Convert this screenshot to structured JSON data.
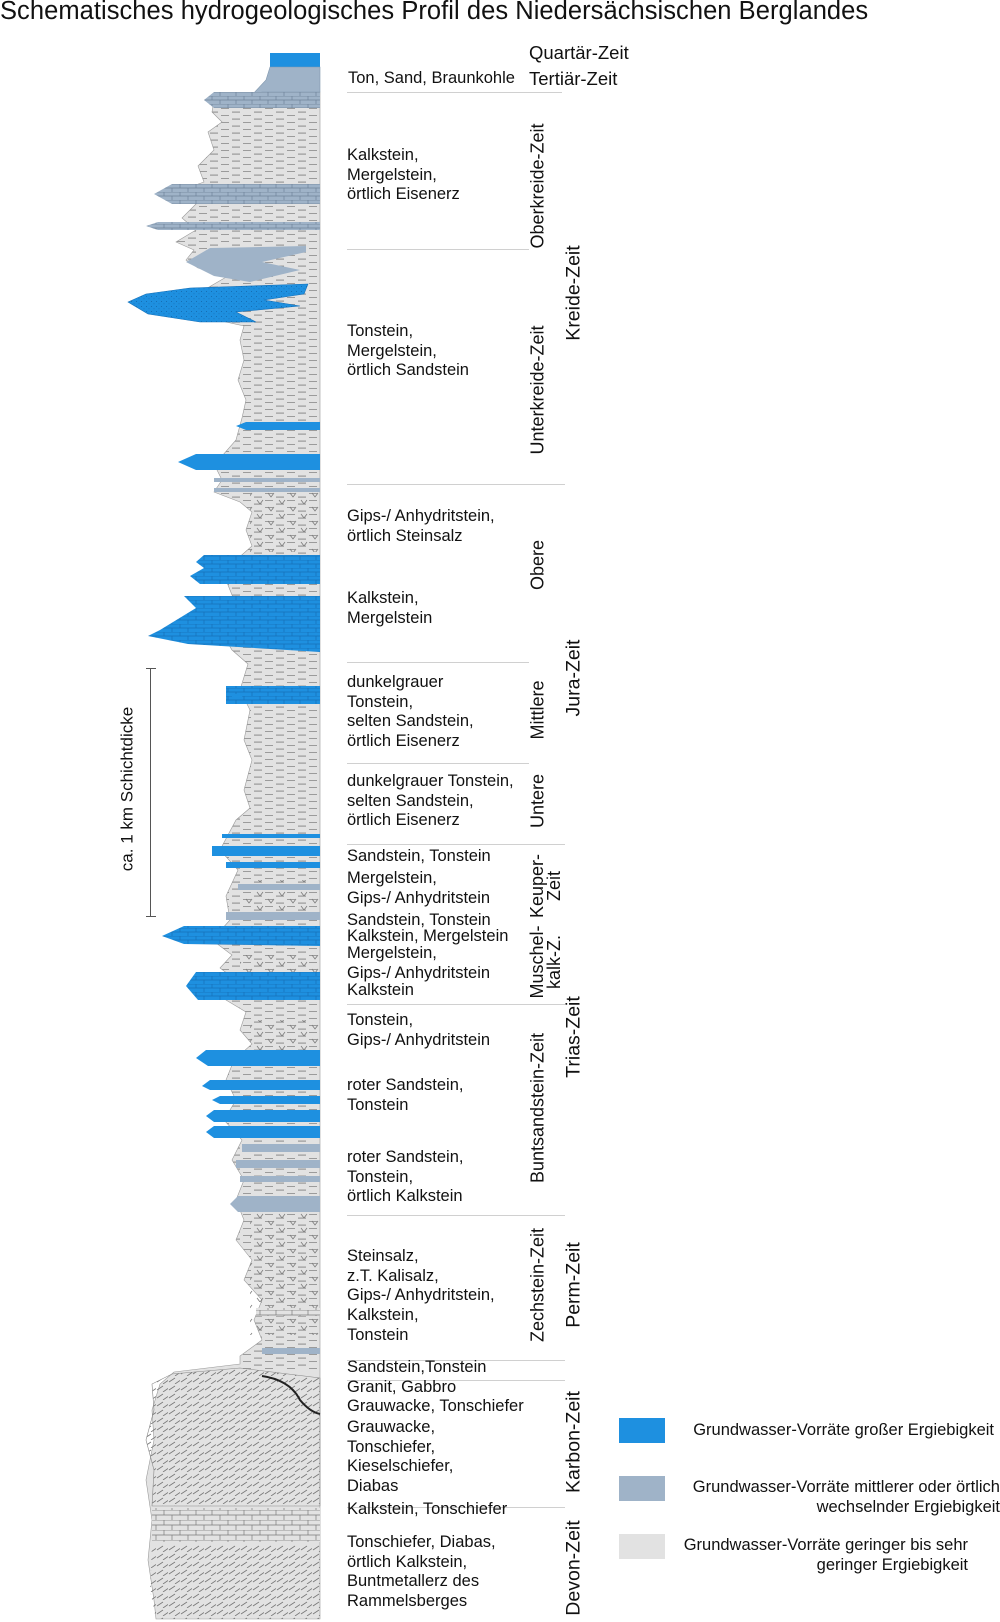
{
  "title": "Schematisches hydrogeologisches Profil des Niedersächsischen Berglandes",
  "colors": {
    "high": "#1e90e0",
    "medium": "#9fb3c8",
    "low": "#e2e2e2"
  },
  "scale_label": "ca. 1 km Schichtdicke",
  "eras": {
    "quartaer": "Quartär-Zeit",
    "tertiaer": "Tertiär-Zeit"
  },
  "periods": {
    "kreide": "Kreide-Zeit",
    "jura": "Jura-Zeit",
    "trias": "Trias-Zeit",
    "perm": "Perm-Zeit",
    "karbon": "Karbon-Zeit",
    "devon": "Devon-Zeit"
  },
  "subperiods": {
    "oberkreide": "Oberkreide-Zeit",
    "unterkreide": "Unterkreide-Zeit",
    "obere": "Obere",
    "mittlere": "Mittlere",
    "untere": "Untere",
    "keuper": "Keuper-\nZeit",
    "muschelkalk": "Muschel-\nkalk-Z.",
    "buntsandstein": "Buntsandstein-Zeit",
    "zechstein": "Zechstein-Zeit"
  },
  "lithology": [
    "Ton, Sand, Braunkohle",
    "Kalkstein,\nMergelstein,\nörtlich Eisenerz",
    "Tonstein,\nMergelstein,\nörtlich Sandstein",
    "Gips-/ Anhydritstein,\nörtlich Steinsalz",
    "Kalkstein,\nMergelstein",
    "dunkelgrauer\nTonstein,\nselten Sandstein,\nörtlich Eisenerz",
    "dunkelgrauer Tonstein,\nselten Sandstein,\nörtlich Eisenerz",
    "Sandstein, Tonstein",
    "Mergelstein,\nGips-/ Anhydritstein",
    "Sandstein, Tonstein",
    "Kalkstein, Mergelstein",
    "Mergelstein,\nGips-/ Anhydritstein",
    "Kalkstein",
    "Tonstein,\nGips-/ Anhydritstein",
    "roter Sandstein,\nTonstein",
    "roter Sandstein,\nTonstein,\nörtlich Kalkstein",
    "Steinsalz,\nz.T. Kalisalz,\nGips-/ Anhydritstein,\nKalkstein,\nTonstein",
    "Sandstein,Tonstein",
    "Granit, Gabbro",
    "Grauwacke, Tonschiefer",
    "Grauwacke,\nTonschiefer,\nKieselschiefer,\nDiabas",
    "Kalkstein, Tonschiefer",
    "Tonschiefer, Diabas,\nörtlich Kalkstein,\nBuntmetallerz des\nRammelsberges"
  ],
  "legend": [
    {
      "label": "Grundwasser-Vorräte großer Ergiebigkeit",
      "color": "#1e90e0"
    },
    {
      "label": "Grundwasser-Vorräte mittlerer oder örtlich\nwechselnder Ergiebigkeit",
      "color": "#9fb3c8"
    },
    {
      "label": "Grundwasser-Vorräte geringer bis sehr\ngeringer Ergiebigkeit",
      "color": "#e2e2e2"
    }
  ]
}
